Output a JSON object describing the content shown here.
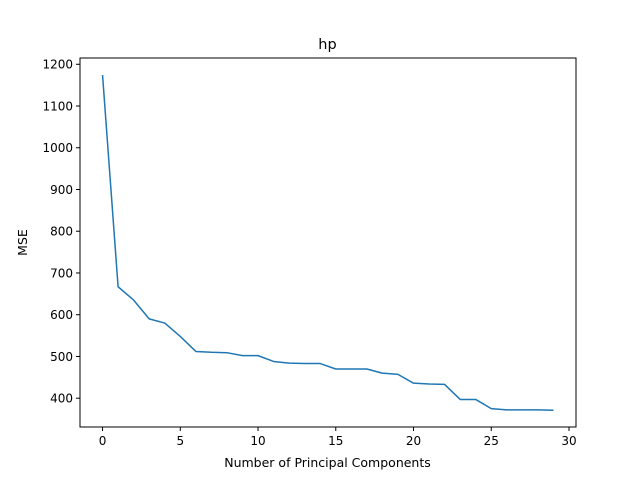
{
  "chart_data": {
    "type": "line",
    "title": "hp",
    "xlabel": "Number of Principal Components",
    "ylabel": "MSE",
    "xlim": [
      -1.45,
      30.45
    ],
    "ylim": [
      331,
      1215
    ],
    "xticks": [
      0,
      5,
      10,
      15,
      20,
      25,
      30
    ],
    "yticks": [
      400,
      500,
      600,
      700,
      800,
      900,
      1000,
      1100,
      1200
    ],
    "grid": false,
    "series": [
      {
        "color": "#1f77b4",
        "x": [
          0,
          1,
          2,
          3,
          4,
          5,
          6,
          7,
          8,
          9,
          10,
          11,
          12,
          13,
          14,
          15,
          16,
          17,
          18,
          19,
          20,
          21,
          22,
          23,
          24,
          25,
          26,
          27,
          28,
          29
        ],
        "y": [
          1174,
          667,
          635,
          590,
          580,
          548,
          512,
          510,
          509,
          502,
          502,
          488,
          484,
          483,
          483,
          470,
          470,
          470,
          460,
          457,
          436,
          434,
          433,
          397,
          397,
          375,
          372,
          372,
          372,
          371
        ]
      }
    ]
  }
}
